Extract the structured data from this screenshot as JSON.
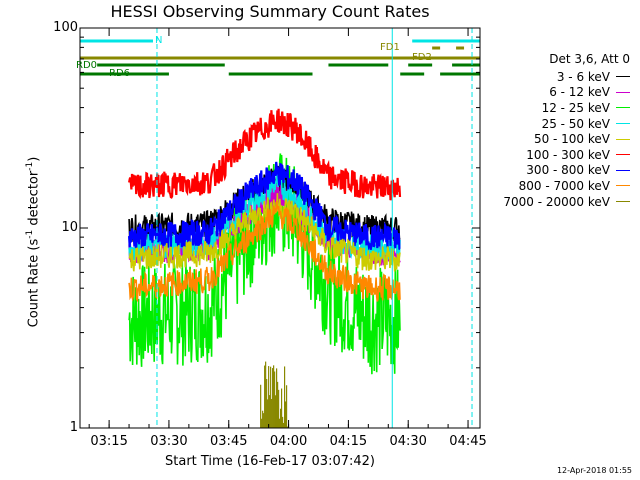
{
  "chart_data": {
    "type": "line",
    "title": "HESSI Observing Summary Count Rates",
    "xlabel": "Start Time (16-Feb-17 03:07:42)",
    "ylabel": "Count Rate (s",
    "ylabel_exp1": "-1",
    "ylabel_mid": " detector",
    "ylabel_exp2": "-1",
    "ylabel_end": ")",
    "yscale": "log",
    "ylim": [
      1,
      100
    ],
    "xlim": [
      "03:07:42",
      "04:48:00"
    ],
    "yticks": [
      "100",
      "10",
      "1"
    ],
    "xticks": [
      "03:15",
      "03:30",
      "03:45",
      "04:00",
      "04:15",
      "04:30",
      "04:45"
    ],
    "legend_title": "Det 3,6, Att 0",
    "timestamp": "12-Apr-2018 01:55",
    "series": [
      {
        "name": "3 - 6 keV",
        "color": "#000000",
        "values": [
          [
            "03:20",
            10
          ],
          [
            "03:40",
            10.5
          ],
          [
            "03:50",
            15
          ],
          [
            "03:57",
            18
          ],
          [
            "04:02",
            16
          ],
          [
            "04:10",
            11
          ],
          [
            "04:20",
            10
          ],
          [
            "04:28",
            10
          ]
        ]
      },
      {
        "name": "6 - 12 keV",
        "color": "#cc00cc",
        "values": [
          [
            "03:20",
            7.5
          ],
          [
            "03:40",
            8
          ],
          [
            "03:50",
            12
          ],
          [
            "03:57",
            15
          ],
          [
            "04:02",
            13
          ],
          [
            "04:10",
            8.5
          ],
          [
            "04:20",
            7.5
          ],
          [
            "04:28",
            7.5
          ]
        ]
      },
      {
        "name": "12 - 25 keV",
        "color": "#00ee00",
        "values": [
          [
            "03:20",
            3.5
          ],
          [
            "03:40",
            4
          ],
          [
            "03:50",
            9
          ],
          [
            "03:57",
            14
          ],
          [
            "04:02",
            11
          ],
          [
            "04:10",
            5
          ],
          [
            "04:20",
            3.5
          ],
          [
            "04:28",
            3.5
          ]
        ]
      },
      {
        "name": "25 - 50 keV",
        "color": "#00e5e5",
        "values": [
          [
            "03:20",
            8
          ],
          [
            "03:40",
            8.5
          ],
          [
            "03:50",
            13
          ],
          [
            "03:57",
            17
          ],
          [
            "04:02",
            14
          ],
          [
            "04:10",
            9
          ],
          [
            "04:20",
            8
          ],
          [
            "04:28",
            8
          ]
        ]
      },
      {
        "name": "50 - 100 keV",
        "color": "#cccc00",
        "values": [
          [
            "03:20",
            7
          ],
          [
            "03:40",
            7.5
          ],
          [
            "03:50",
            11
          ],
          [
            "03:57",
            13
          ],
          [
            "04:02",
            12
          ],
          [
            "04:10",
            8
          ],
          [
            "04:20",
            7
          ],
          [
            "04:28",
            7
          ]
        ]
      },
      {
        "name": "100 - 300 keV",
        "color": "#ff0000",
        "values": [
          [
            "03:20",
            16
          ],
          [
            "03:40",
            17
          ],
          [
            "03:50",
            28
          ],
          [
            "03:57",
            35
          ],
          [
            "04:02",
            31
          ],
          [
            "04:10",
            18
          ],
          [
            "04:20",
            16
          ],
          [
            "04:28",
            16
          ]
        ]
      },
      {
        "name": "300 - 800 keV",
        "color": "#0000ff",
        "values": [
          [
            "03:20",
            9
          ],
          [
            "03:40",
            9.5
          ],
          [
            "03:50",
            15
          ],
          [
            "03:57",
            19
          ],
          [
            "04:02",
            17
          ],
          [
            "04:10",
            10
          ],
          [
            "04:20",
            9
          ],
          [
            "04:28",
            9
          ]
        ]
      },
      {
        "name": "800 - 7000 keV",
        "color": "#ff8800",
        "values": [
          [
            "03:20",
            5
          ],
          [
            "03:40",
            5.5
          ],
          [
            "03:50",
            9
          ],
          [
            "03:57",
            12
          ],
          [
            "04:02",
            10
          ],
          [
            "04:10",
            6
          ],
          [
            "04:20",
            5
          ],
          [
            "04:28",
            5
          ]
        ]
      },
      {
        "name": "7000 - 20000 keV",
        "color": "#888800",
        "values": [
          [
            "03:53",
            1.5
          ],
          [
            "03:57",
            2
          ],
          [
            "04:00",
            1.5
          ]
        ]
      }
    ],
    "flags": [
      {
        "label": "N",
        "color": "#00e5e5"
      },
      {
        "label": "FD1",
        "color": "#888800"
      },
      {
        "label": "FD2",
        "color": "#888800"
      },
      {
        "label": "RD0",
        "color": "#007700"
      },
      {
        "label": "RD6",
        "color": "#007700"
      }
    ]
  }
}
